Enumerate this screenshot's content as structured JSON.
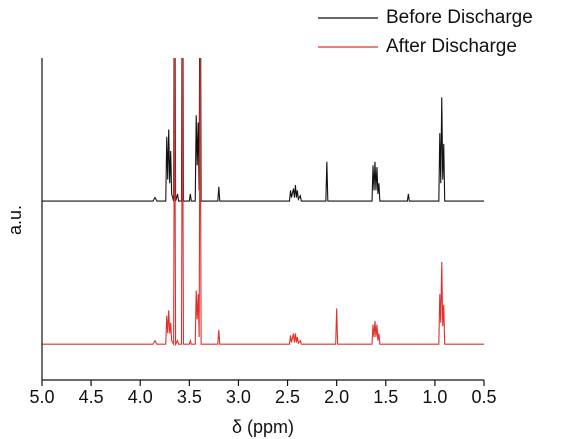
{
  "chart_data": {
    "type": "line",
    "x_label": "δ (ppm)",
    "y_label": "a.u.",
    "xlim": [
      5.0,
      0.5
    ],
    "ylim": [
      0,
      9
    ],
    "xticks": [
      {
        "value": 5.0,
        "label": "5.0"
      },
      {
        "value": 4.5,
        "label": "4.5"
      },
      {
        "value": 4.0,
        "label": "4.0"
      },
      {
        "value": 3.5,
        "label": "3.5"
      },
      {
        "value": 3.0,
        "label": "3.0"
      },
      {
        "value": 2.5,
        "label": "2.5"
      },
      {
        "value": 2.0,
        "label": "2.0"
      },
      {
        "value": 1.5,
        "label": "1.5"
      },
      {
        "value": 1.0,
        "label": "1.0"
      },
      {
        "value": 0.5,
        "label": "0.5"
      }
    ],
    "legend": "top-right",
    "series": [
      {
        "name": "Before Discharge",
        "color": "#111111",
        "x": [
          5.0,
          3.87,
          3.85,
          3.83,
          3.74,
          3.73,
          3.72,
          3.71,
          3.7,
          3.69,
          3.68,
          3.66,
          3.65,
          3.64,
          3.62,
          3.61,
          3.58,
          3.57,
          3.56,
          3.5,
          3.49,
          3.48,
          3.44,
          3.43,
          3.42,
          3.41,
          3.4,
          3.39,
          3.38,
          3.21,
          3.2,
          3.19,
          2.48,
          2.47,
          2.46,
          2.44,
          2.43,
          2.42,
          2.41,
          2.4,
          2.39,
          2.37,
          2.36,
          2.11,
          2.1,
          2.09,
          1.64,
          1.63,
          1.62,
          1.61,
          1.6,
          1.59,
          1.58,
          1.57,
          1.56,
          1.28,
          1.27,
          1.26,
          0.96,
          0.95,
          0.94,
          0.93,
          0.92,
          0.91,
          0.9,
          0.5
        ],
        "values": [
          5,
          5,
          5.1,
          5,
          5,
          6.8,
          5.6,
          7.0,
          5.5,
          6.4,
          5.2,
          5,
          14,
          5,
          5.2,
          5,
          5,
          14,
          5,
          5,
          5.2,
          5,
          5,
          7.4,
          6,
          7.2,
          5.3,
          14,
          5,
          5,
          5.4,
          5,
          5,
          5.3,
          5.1,
          5.35,
          5.1,
          5.45,
          5.1,
          5.3,
          5.05,
          5.15,
          5,
          5,
          6.1,
          5,
          5,
          6.0,
          5.3,
          6.1,
          5.3,
          5.95,
          5.2,
          5.5,
          5,
          5,
          5.2,
          5,
          5,
          6.9,
          5.5,
          7.9,
          5.6,
          6.6,
          5,
          5
        ]
      },
      {
        "name": "After Discharge",
        "color": "#e0302c",
        "x": [
          5.0,
          3.87,
          3.85,
          3.83,
          3.74,
          3.73,
          3.72,
          3.71,
          3.7,
          3.69,
          3.68,
          3.66,
          3.65,
          3.64,
          3.62,
          3.61,
          3.58,
          3.57,
          3.56,
          3.5,
          3.49,
          3.48,
          3.44,
          3.43,
          3.42,
          3.41,
          3.4,
          3.39,
          3.38,
          3.21,
          3.2,
          3.19,
          2.48,
          2.47,
          2.46,
          2.44,
          2.43,
          2.42,
          2.41,
          2.4,
          2.39,
          2.37,
          2.36,
          2.01,
          2.0,
          1.99,
          1.64,
          1.63,
          1.62,
          1.61,
          1.6,
          1.59,
          1.58,
          1.57,
          1.56,
          0.96,
          0.95,
          0.94,
          0.93,
          0.92,
          0.91,
          0.9,
          0.5
        ],
        "values": [
          1,
          1,
          1.1,
          1,
          1,
          1.8,
          1.3,
          1.95,
          1.3,
          1.6,
          1.1,
          1,
          10,
          1,
          1.1,
          1,
          1,
          10,
          1,
          1,
          1.1,
          1,
          1,
          2.5,
          1.7,
          2.4,
          1.2,
          10,
          1,
          1,
          1.4,
          1,
          1,
          1.25,
          1.05,
          1.3,
          1.05,
          1.3,
          1.05,
          1.2,
          1.03,
          1.1,
          1,
          1,
          2.0,
          1,
          1,
          1.55,
          1.2,
          1.65,
          1.2,
          1.55,
          1.1,
          1.3,
          1,
          1,
          2.4,
          1.6,
          3.3,
          1.5,
          2.1,
          1,
          1
        ]
      }
    ]
  }
}
